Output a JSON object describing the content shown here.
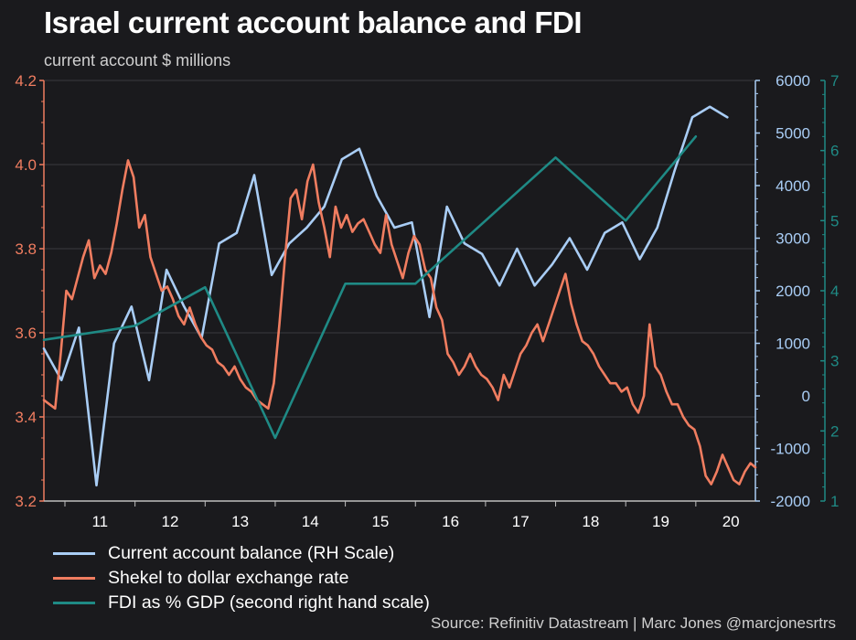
{
  "header": {
    "title": "Israel current account balance and FDI",
    "subtitle": "current account $ millions"
  },
  "footer": {
    "source": "Source: Refinitiv Datastream | Marc Jones @marcjonesrtrs"
  },
  "colors": {
    "background": "#1a1a1d",
    "current_account": "#a9cdf5",
    "shekel": "#f07d60",
    "fdi": "#1f8a85",
    "gridline": "#3a3a3e"
  },
  "chart_data": {
    "type": "line",
    "x_tick_labels": [
      "11",
      "12",
      "13",
      "14",
      "15",
      "16",
      "17",
      "18",
      "19",
      "20"
    ],
    "x_range": [
      2010.7,
      2020.85
    ],
    "axes": {
      "left": {
        "range": [
          3.2,
          4.2
        ],
        "ticks": [
          "3.2",
          "3.4",
          "3.6",
          "3.8",
          "4.0",
          "4.2"
        ],
        "color": "#f07d60"
      },
      "right": {
        "range": [
          -2000,
          6000
        ],
        "ticks": [
          "-2000",
          "-1000",
          "0",
          "1000",
          "2000",
          "3000",
          "4000",
          "5000",
          "6000"
        ],
        "color": "#a9cdf5"
      },
      "right2": {
        "range": [
          1,
          7
        ],
        "ticks": [
          "1",
          "2",
          "3",
          "4",
          "5",
          "6",
          "7"
        ],
        "color": "#1f8a85"
      }
    },
    "grid": true,
    "legend_position": "bottom-left",
    "series": [
      {
        "name": "Current account balance (RH Scale)",
        "axis": "right",
        "color": "#a9cdf5",
        "x": [
          2010.7,
          2010.95,
          2011.2,
          2011.45,
          2011.7,
          2011.95,
          2012.2,
          2012.45,
          2012.7,
          2012.95,
          2013.2,
          2013.45,
          2013.7,
          2013.95,
          2014.2,
          2014.45,
          2014.7,
          2014.95,
          2015.2,
          2015.45,
          2015.7,
          2015.95,
          2016.2,
          2016.45,
          2016.7,
          2016.95,
          2017.2,
          2017.45,
          2017.7,
          2017.95,
          2018.2,
          2018.45,
          2018.7,
          2018.95,
          2019.2,
          2019.45,
          2019.7,
          2019.95,
          2020.2,
          2020.45
        ],
        "y": [
          900,
          300,
          1300,
          -1700,
          1000,
          1700,
          300,
          2400,
          1700,
          1100,
          2900,
          3100,
          4200,
          2300,
          2900,
          3200,
          3600,
          4500,
          4700,
          3800,
          3200,
          3300,
          1500,
          3600,
          2900,
          2700,
          2100,
          2800,
          2100,
          2500,
          3000,
          2400,
          3100,
          3300,
          2600,
          3200,
          4300,
          5300,
          5500,
          5300
        ]
      },
      {
        "name": "Shekel to dollar exchange rate",
        "axis": "left",
        "color": "#f07d60",
        "x": [
          2010.7,
          2010.78,
          2010.86,
          2010.94,
          2011.02,
          2011.1,
          2011.18,
          2011.26,
          2011.34,
          2011.42,
          2011.5,
          2011.58,
          2011.66,
          2011.74,
          2011.82,
          2011.9,
          2011.98,
          2012.06,
          2012.14,
          2012.22,
          2012.3,
          2012.38,
          2012.46,
          2012.54,
          2012.62,
          2012.7,
          2012.78,
          2012.86,
          2012.94,
          2013.02,
          2013.1,
          2013.18,
          2013.26,
          2013.34,
          2013.42,
          2013.5,
          2013.58,
          2013.66,
          2013.74,
          2013.82,
          2013.9,
          2013.98,
          2014.06,
          2014.14,
          2014.22,
          2014.3,
          2014.38,
          2014.46,
          2014.54,
          2014.62,
          2014.7,
          2014.78,
          2014.86,
          2014.94,
          2015.02,
          2015.1,
          2015.18,
          2015.26,
          2015.34,
          2015.42,
          2015.5,
          2015.58,
          2015.66,
          2015.74,
          2015.82,
          2015.9,
          2015.98,
          2016.06,
          2016.14,
          2016.22,
          2016.3,
          2016.38,
          2016.46,
          2016.54,
          2016.62,
          2016.7,
          2016.78,
          2016.86,
          2016.94,
          2017.02,
          2017.1,
          2017.18,
          2017.26,
          2017.34,
          2017.42,
          2017.5,
          2017.58,
          2017.66,
          2017.74,
          2017.82,
          2017.9,
          2017.98,
          2018.06,
          2018.14,
          2018.22,
          2018.3,
          2018.38,
          2018.46,
          2018.54,
          2018.62,
          2018.7,
          2018.78,
          2018.86,
          2018.94,
          2019.02,
          2019.1,
          2019.18,
          2019.26,
          2019.34,
          2019.42,
          2019.5,
          2019.58,
          2019.66,
          2019.74,
          2019.82,
          2019.9,
          2019.98,
          2020.06,
          2020.14,
          2020.22,
          2020.3,
          2020.38,
          2020.46,
          2020.54,
          2020.62,
          2020.7,
          2020.78,
          2020.85
        ],
        "y": [
          3.44,
          3.43,
          3.42,
          3.55,
          3.7,
          3.68,
          3.73,
          3.78,
          3.82,
          3.73,
          3.76,
          3.74,
          3.79,
          3.86,
          3.94,
          4.01,
          3.97,
          3.85,
          3.88,
          3.78,
          3.74,
          3.7,
          3.71,
          3.68,
          3.64,
          3.62,
          3.66,
          3.62,
          3.59,
          3.57,
          3.56,
          3.53,
          3.52,
          3.5,
          3.52,
          3.49,
          3.47,
          3.46,
          3.44,
          3.43,
          3.42,
          3.48,
          3.62,
          3.78,
          3.92,
          3.94,
          3.87,
          3.96,
          4.0,
          3.91,
          3.85,
          3.78,
          3.9,
          3.85,
          3.88,
          3.84,
          3.86,
          3.87,
          3.84,
          3.81,
          3.79,
          3.88,
          3.81,
          3.77,
          3.73,
          3.79,
          3.83,
          3.81,
          3.75,
          3.73,
          3.66,
          3.63,
          3.55,
          3.53,
          3.5,
          3.52,
          3.55,
          3.52,
          3.5,
          3.49,
          3.47,
          3.44,
          3.5,
          3.47,
          3.51,
          3.55,
          3.57,
          3.6,
          3.62,
          3.58,
          3.62,
          3.66,
          3.7,
          3.74,
          3.67,
          3.62,
          3.58,
          3.57,
          3.55,
          3.52,
          3.5,
          3.48,
          3.48,
          3.46,
          3.47,
          3.43,
          3.41,
          3.45,
          3.62,
          3.52,
          3.5,
          3.46,
          3.43,
          3.43,
          3.4,
          3.38,
          3.37,
          3.33,
          3.26,
          3.24,
          3.27,
          3.31,
          3.28,
          3.25,
          3.24,
          3.27,
          3.29,
          3.28
        ]
      },
      {
        "name": "FDI as % GDP (second right hand scale)",
        "axis": "right2",
        "color": "#1f8a85",
        "x": [
          2010.7,
          2011.7,
          2012.0,
          2013.0,
          2014.0,
          2015.0,
          2016.0,
          2017.0,
          2018.0,
          2019.0,
          2020.0
        ],
        "y": [
          3.3,
          3.45,
          3.5,
          4.05,
          1.9,
          4.1,
          4.1,
          5.0,
          5.9,
          5.0,
          6.2
        ]
      }
    ]
  }
}
